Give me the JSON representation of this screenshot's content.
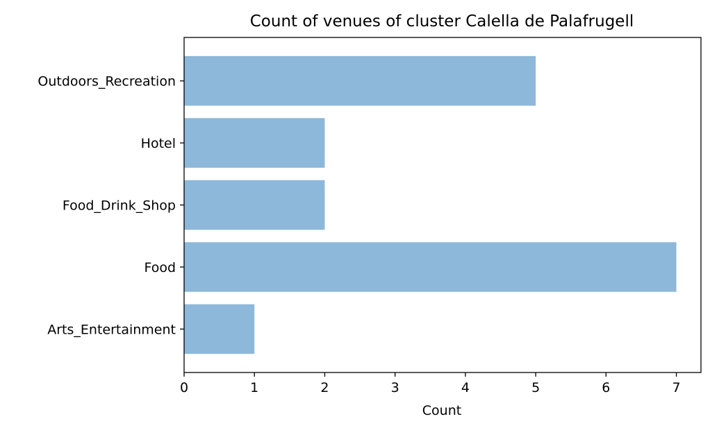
{
  "chart_data": {
    "type": "bar",
    "orientation": "horizontal",
    "title": "Count of venues of cluster Calella de Palafrugell",
    "xlabel": "Count",
    "ylabel": "",
    "categories": [
      "Arts_Entertainment",
      "Food",
      "Food_Drink_Shop",
      "Hotel",
      "Outdoors_Recreation"
    ],
    "values": [
      1,
      7,
      2,
      2,
      5
    ],
    "xlim": [
      0,
      7.35
    ],
    "xticks": [
      "0",
      "1",
      "2",
      "3",
      "4",
      "5",
      "6",
      "7"
    ],
    "bar_color": "#8db8d9",
    "grid": false,
    "legend": "none"
  }
}
